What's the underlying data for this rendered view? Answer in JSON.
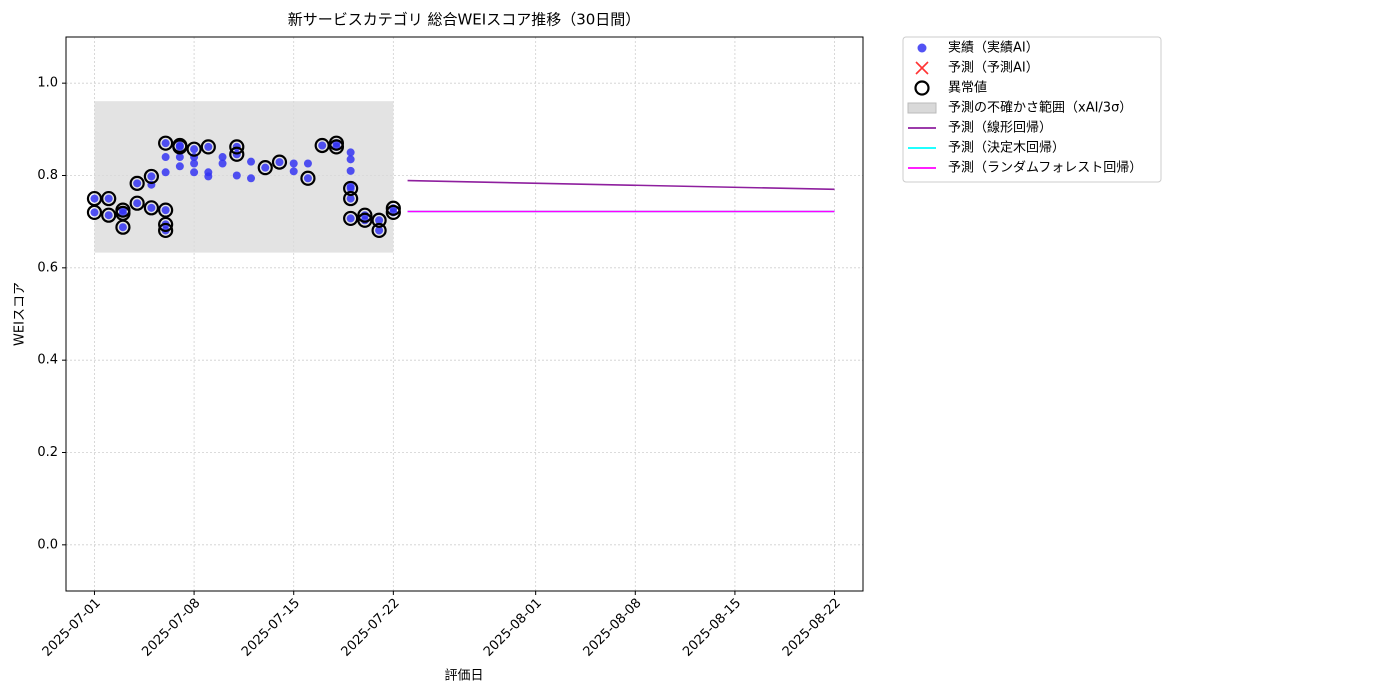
{
  "chart_data": {
    "type": "scatter",
    "title": "新サービスカテゴリ 総合WEIスコア推移（30日間）",
    "xlabel": "評価日",
    "ylabel": "WEIスコア",
    "xlim": [
      "2025-06-29",
      "2025-08-24"
    ],
    "ylim": [
      -0.1,
      1.1
    ],
    "xticks": [
      "2025-07-01",
      "2025-07-08",
      "2025-07-15",
      "2025-07-22",
      "2025-08-01",
      "2025-08-08",
      "2025-08-15",
      "2025-08-22"
    ],
    "yticks": [
      {
        "value": 0,
        "label": "0.0"
      },
      {
        "value": 0.2,
        "label": "0.2"
      },
      {
        "value": 0.4,
        "label": "0.4"
      },
      {
        "value": 0.6,
        "label": "0.6"
      },
      {
        "value": 0.8,
        "label": "0.8"
      },
      {
        "value": 1,
        "label": "1.0"
      }
    ],
    "grid": true,
    "legend": "outside upper right",
    "series": [
      {
        "name": "実績（実績AI）",
        "kind": "dot",
        "color": "#3434f2",
        "x": [
          "2025-07-01",
          "2025-07-01",
          "2025-07-02",
          "2025-07-02",
          "2025-07-03",
          "2025-07-03",
          "2025-07-03",
          "2025-07-04",
          "2025-07-04",
          "2025-07-05",
          "2025-07-05",
          "2025-07-05",
          "2025-07-06",
          "2025-07-06",
          "2025-07-06",
          "2025-07-06",
          "2025-07-06",
          "2025-07-06",
          "2025-07-07",
          "2025-07-07",
          "2025-07-07",
          "2025-07-07",
          "2025-07-08",
          "2025-07-08",
          "2025-07-08",
          "2025-07-08",
          "2025-07-09",
          "2025-07-09",
          "2025-07-09",
          "2025-07-10",
          "2025-07-10",
          "2025-07-11",
          "2025-07-11",
          "2025-07-11",
          "2025-07-12",
          "2025-07-12",
          "2025-07-13",
          "2025-07-14",
          "2025-07-15",
          "2025-07-15",
          "2025-07-16",
          "2025-07-16",
          "2025-07-17",
          "2025-07-18",
          "2025-07-18",
          "2025-07-19",
          "2025-07-19",
          "2025-07-19",
          "2025-07-19",
          "2025-07-19",
          "2025-07-19",
          "2025-07-19",
          "2025-07-20",
          "2025-07-20",
          "2025-07-21",
          "2025-07-21",
          "2025-07-22",
          "2025-07-22"
        ],
        "values": [
          0.75,
          0.72,
          0.714,
          0.75,
          0.725,
          0.718,
          0.688,
          0.74,
          0.783,
          0.73,
          0.78,
          0.798,
          0.694,
          0.725,
          0.681,
          0.87,
          0.84,
          0.807,
          0.84,
          0.82,
          0.865,
          0.862,
          0.857,
          0.84,
          0.807,
          0.826,
          0.807,
          0.798,
          0.862,
          0.826,
          0.84,
          0.846,
          0.8,
          0.862,
          0.83,
          0.794,
          0.817,
          0.829,
          0.826,
          0.809,
          0.794,
          0.826,
          0.865,
          0.87,
          0.862,
          0.85,
          0.835,
          0.81,
          0.772,
          0.75,
          0.707,
          0.776,
          0.714,
          0.703,
          0.681,
          0.703,
          0.729,
          0.72
        ]
      },
      {
        "name": "予測（予測AI）",
        "kind": "cross",
        "color": "#ff0000",
        "x": [],
        "values": []
      },
      {
        "name": "異常値",
        "kind": "ring",
        "color": "#000000",
        "x": [
          "2025-07-01",
          "2025-07-01",
          "2025-07-02",
          "2025-07-02",
          "2025-07-03",
          "2025-07-03",
          "2025-07-03",
          "2025-07-04",
          "2025-07-04",
          "2025-07-05",
          "2025-07-05",
          "2025-07-06",
          "2025-07-06",
          "2025-07-06",
          "2025-07-06",
          "2025-07-07",
          "2025-07-07",
          "2025-07-08",
          "2025-07-09",
          "2025-07-11",
          "2025-07-11",
          "2025-07-13",
          "2025-07-14",
          "2025-07-16",
          "2025-07-17",
          "2025-07-18",
          "2025-07-18",
          "2025-07-19",
          "2025-07-19",
          "2025-07-19",
          "2025-07-20",
          "2025-07-20",
          "2025-07-21",
          "2025-07-21",
          "2025-07-22",
          "2025-07-22"
        ],
        "values": [
          0.75,
          0.72,
          0.714,
          0.75,
          0.725,
          0.718,
          0.688,
          0.74,
          0.783,
          0.73,
          0.798,
          0.694,
          0.725,
          0.681,
          0.87,
          0.865,
          0.862,
          0.857,
          0.862,
          0.846,
          0.862,
          0.817,
          0.829,
          0.794,
          0.865,
          0.87,
          0.862,
          0.772,
          0.75,
          0.707,
          0.714,
          0.703,
          0.681,
          0.703,
          0.729,
          0.72
        ]
      },
      {
        "name": "予測の不確かさ範囲（xAI/3σ）",
        "kind": "band",
        "color": "#d9d9d9",
        "x": [
          "2025-07-01",
          "2025-07-22"
        ],
        "lower": [
          0.633,
          0.633
        ],
        "upper": [
          0.961,
          0.961
        ]
      },
      {
        "name": "予測（線形回帰）",
        "kind": "line",
        "color": "#8e1f9e",
        "x": [
          "2025-07-23",
          "2025-08-22"
        ],
        "values": [
          0.789,
          0.77
        ]
      },
      {
        "name": "予測（決定木回帰）",
        "kind": "line",
        "color": "#00ffff",
        "x": [
          "2025-07-23",
          "2025-08-22"
        ],
        "values": [
          0.722,
          0.722
        ]
      },
      {
        "name": "予測（ランダムフォレスト回帰）",
        "kind": "line",
        "color": "#ff00ff",
        "x": [
          "2025-07-23",
          "2025-08-22"
        ],
        "values": [
          0.722,
          0.722
        ]
      }
    ]
  }
}
